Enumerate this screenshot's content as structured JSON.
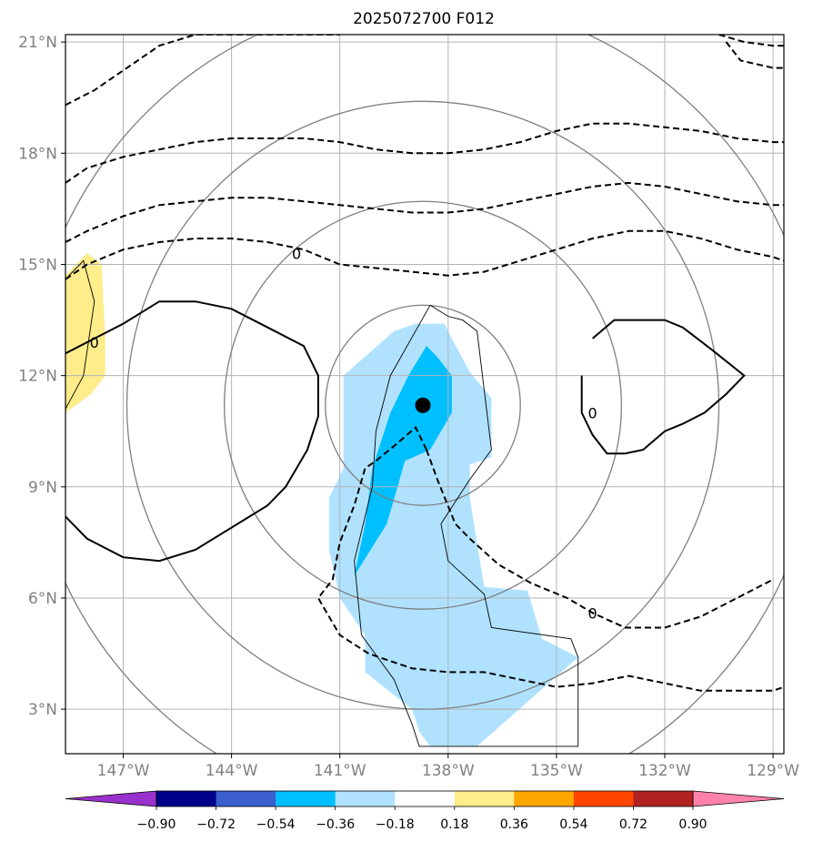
{
  "chart_data": {
    "type": "map_contour",
    "title": "2025072700 F012",
    "lon_range": [
      -148.6,
      -128.7
    ],
    "lat_range": [
      1.8,
      21.2
    ],
    "lon_ticks": [
      -147,
      -144,
      -141,
      -138,
      -135,
      -132,
      -129
    ],
    "lon_tick_labels": [
      "147°W",
      "144°W",
      "141°W",
      "138°W",
      "135°W",
      "132°W",
      "129°W"
    ],
    "lat_ticks": [
      3,
      6,
      9,
      12,
      15,
      18,
      21
    ],
    "lat_tick_labels": [
      "3°N",
      "6°N",
      "9°N",
      "12°N",
      "15°N",
      "18°N",
      "21°N"
    ],
    "colorbar": {
      "levels": [
        -0.9,
        -0.72,
        -0.54,
        -0.36,
        -0.18,
        0.18,
        0.36,
        0.54,
        0.72,
        0.9
      ],
      "labels": [
        "−0.90",
        "−0.72",
        "−0.54",
        "−0.36",
        "−0.18",
        "0.18",
        "0.36",
        "0.54",
        "0.72",
        "0.90"
      ],
      "colors": [
        "#9932cc",
        "#00008b",
        "#3a5fcd",
        "#00bfff",
        "#b0e2ff",
        "#ffffff",
        "#ffec8b",
        "#ffa500",
        "#ff4500",
        "#b22222",
        "#ff82ab"
      ],
      "extend": "both"
    },
    "storm_center": {
      "lon": -138.7,
      "lat": 11.2
    },
    "range_circle_radii_deg": [
      2.7,
      5.5,
      8.2,
      11.0
    ],
    "contour_label": "0",
    "filled_regions": [
      {
        "level": "-0.36 to -0.18",
        "color": "#b0e2ff",
        "lon": [
          -139.5,
          -138.9,
          -138.1,
          -137.9,
          -137.4,
          -136.8,
          -136.8,
          -137.4,
          -137.4,
          -137.0,
          -135.8,
          -135.4,
          -134.4,
          -134.4,
          -137.2,
          -138.5,
          -138.8,
          -139.0,
          -140.3,
          -140.3,
          -141.0,
          -141.3,
          -141.3,
          -140.9,
          -140.9
        ],
        "lat": [
          13.2,
          13.4,
          13.4,
          13.0,
          12.1,
          11.4,
          9.8,
          9.6,
          8.7,
          6.3,
          6.2,
          4.9,
          4.4,
          4.4,
          2.0,
          2.0,
          2.4,
          3.0,
          4.0,
          5.0,
          6.0,
          7.3,
          8.7,
          9.5,
          12.0
        ]
      },
      {
        "level": "-0.54 to -0.36",
        "color": "#00bfff",
        "lon": [
          -139.1,
          -138.6,
          -138.3,
          -137.9,
          -137.9,
          -138.5,
          -139.2,
          -139.4,
          -139.7,
          -140.6,
          -140.3,
          -140.1,
          -139.6
        ],
        "lat": [
          12.0,
          12.8,
          12.5,
          12.0,
          11.0,
          10.0,
          9.7,
          9.0,
          8.0,
          6.6,
          8.0,
          9.5,
          11.0
        ]
      },
      {
        "level": "0.18 to 0.36",
        "color": "#ffec8b",
        "lon": [
          -148.6,
          -148.0,
          -147.6,
          -147.5,
          -147.5,
          -147.9,
          -148.6
        ],
        "lat": [
          14.7,
          15.3,
          15.0,
          13.0,
          12.0,
          11.5,
          11.0
        ]
      }
    ],
    "contours": [
      {
        "style": "dashed",
        "lon": [
          -148.6,
          -147.8,
          -146.6,
          -146.0,
          -145.0,
          -144.1,
          -143.0,
          -142.0,
          -141.0
        ],
        "lat": [
          19.3,
          19.7,
          20.5,
          20.9,
          21.2,
          21.2,
          21.2,
          21.2,
          21.2
        ]
      },
      {
        "style": "dashed",
        "lon": [
          -130.5,
          -129.8,
          -129.0,
          -128.7
        ],
        "lat": [
          21.2,
          21.0,
          20.9,
          20.9
        ]
      },
      {
        "style": "dashed",
        "lon": [
          -130.3,
          -129.9,
          -129.0,
          -128.7
        ],
        "lat": [
          21.0,
          20.5,
          20.3,
          20.3
        ]
      },
      {
        "style": "dashed",
        "lon": [
          -148.6,
          -148.0,
          -147.0,
          -146.0,
          -145.0,
          -144.0,
          -143.0,
          -142.0,
          -141.0,
          -140.0,
          -139.0,
          -138.0,
          -137.0,
          -136.0,
          -135.0,
          -134.0,
          -133.0,
          -132.0,
          -131.0,
          -130.0,
          -129.0,
          -128.7
        ],
        "lat": [
          17.2,
          17.6,
          17.9,
          18.1,
          18.3,
          18.4,
          18.4,
          18.4,
          18.3,
          18.1,
          18.0,
          18.0,
          18.1,
          18.3,
          18.6,
          18.8,
          18.8,
          18.7,
          18.6,
          18.4,
          18.3,
          18.3
        ]
      },
      {
        "style": "dashed",
        "lon": [
          -148.6,
          -148.0,
          -147.0,
          -146.0,
          -145.0,
          -144.0,
          -143.0,
          -142.0,
          -141.0,
          -140.0,
          -139.0,
          -138.0,
          -137.0,
          -136.0,
          -135.0,
          -134.0,
          -133.0,
          -132.0,
          -131.0,
          -130.0,
          -129.0,
          -128.7
        ],
        "lat": [
          15.6,
          15.9,
          16.3,
          16.6,
          16.7,
          16.8,
          16.8,
          16.7,
          16.6,
          16.5,
          16.4,
          16.4,
          16.5,
          16.7,
          16.9,
          17.1,
          17.2,
          17.1,
          16.9,
          16.7,
          16.6,
          16.6
        ]
      },
      {
        "style": "dashed",
        "lon": [
          -148.6,
          -148.0,
          -147.0,
          -146.0,
          -145.0,
          -144.0,
          -143.0,
          -142.0,
          -141.0,
          -140.0,
          -139.0,
          -138.0,
          -137.0,
          -136.0,
          -135.0,
          -134.0,
          -133.0,
          -132.0,
          -131.0,
          -130.0,
          -129.0,
          -128.7
        ],
        "lat": [
          14.6,
          15.0,
          15.4,
          15.6,
          15.7,
          15.7,
          15.6,
          15.4,
          15.0,
          14.9,
          14.8,
          14.7,
          14.8,
          15.1,
          15.4,
          15.7,
          15.9,
          15.9,
          15.7,
          15.4,
          15.2,
          15.1
        ]
      },
      {
        "style": "dashed",
        "lon": [
          -138.6,
          -138.9,
          -139.5,
          -140.0,
          -140.3,
          -140.6,
          -141.0,
          -141.2,
          -141.6,
          -141.0,
          -140.2,
          -139.0,
          -138.0,
          -137.0,
          -136.0,
          -135.0,
          -134.0,
          -133.0,
          -132.0,
          -131.0,
          -130.0,
          -129.0,
          -128.7
        ],
        "lat": [
          10.0,
          10.6,
          10.1,
          9.7,
          9.5,
          8.5,
          7.5,
          6.5,
          6.0,
          5.0,
          4.5,
          4.1,
          4.0,
          4.0,
          3.8,
          3.6,
          3.7,
          3.9,
          3.7,
          3.5,
          3.5,
          3.5,
          3.6
        ]
      },
      {
        "style": "dashed",
        "lon": [
          -138.6,
          -138.3,
          -137.8,
          -137.4,
          -136.6,
          -135.7,
          -134.7,
          -134.0,
          -133.1,
          -132.0,
          -131.0,
          -130.0,
          -129.0
        ],
        "lat": [
          10.0,
          9.2,
          8.0,
          7.6,
          6.9,
          6.4,
          6.0,
          5.6,
          5.2,
          5.2,
          5.5,
          6.0,
          6.5
        ]
      },
      {
        "style": "solid",
        "lon": [
          -148.6,
          -147.8,
          -147.0,
          -146.0,
          -145.0,
          -144.0,
          -143.0,
          -142.0,
          -141.6,
          -141.6,
          -141.9,
          -142.5,
          -143.0,
          -144.0,
          -145.0,
          -146.0,
          -147.0,
          -148.0,
          -148.6
        ],
        "lat": [
          12.6,
          13.0,
          13.4,
          14.0,
          14.0,
          13.8,
          13.3,
          12.8,
          12.0,
          10.9,
          10.0,
          9.0,
          8.5,
          7.9,
          7.3,
          7.0,
          7.1,
          7.6,
          8.2
        ]
      },
      {
        "style": "solid",
        "lon": [
          -134.0,
          -133.4,
          -132.7,
          -132.0,
          -131.5,
          -130.7,
          -129.8,
          -130.3,
          -130.9,
          -131.5,
          -132.0,
          -132.6,
          -133.1,
          -133.6,
          -134.0,
          -134.3,
          -134.3
        ],
        "lat": [
          13.0,
          13.5,
          13.5,
          13.5,
          13.3,
          12.7,
          12.0,
          11.5,
          11.0,
          10.7,
          10.5,
          10.0,
          9.9,
          9.9,
          10.4,
          11.0,
          12.0
        ]
      },
      {
        "style": "thin",
        "lon": [
          -148.6,
          -148.1,
          -147.8,
          -148.1,
          -148.6
        ],
        "lat": [
          14.6,
          15.1,
          14.0,
          12.0,
          11.1
        ]
      },
      {
        "style": "thin",
        "lon": [
          -138.5,
          -138.0,
          -137.6,
          -137.2,
          -136.8,
          -137.4,
          -138.2,
          -138.0,
          -137.0,
          -136.8,
          -134.6,
          -134.4,
          -134.4,
          -135.0,
          -136.0,
          -137.0,
          -138.0,
          -138.5,
          -138.8,
          -139.0,
          -139.5,
          -140.4,
          -140.6,
          -140.1,
          -140.0,
          -139.6,
          -138.5
        ],
        "lat": [
          13.9,
          13.6,
          13.5,
          13.2,
          10.0,
          9.2,
          8.0,
          7.0,
          6.1,
          5.2,
          4.9,
          4.4,
          2.0,
          2.0,
          2.0,
          2.0,
          2.0,
          2.0,
          2.0,
          2.6,
          3.8,
          5.0,
          7.0,
          9.0,
          10.5,
          12.0,
          13.9
        ]
      }
    ]
  }
}
